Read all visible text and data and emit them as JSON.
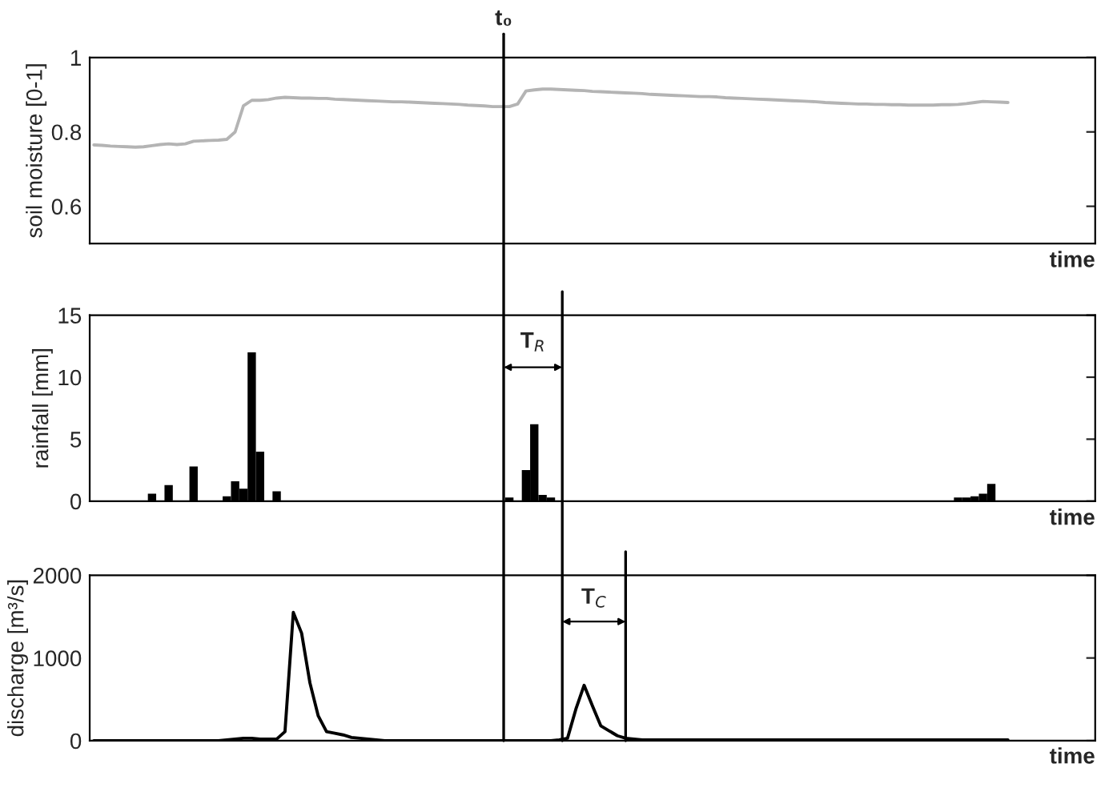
{
  "chart_data": [
    {
      "type": "line",
      "ylabel": "soil moisture [0-1]",
      "xlabel": "time",
      "ylim": [
        0.5,
        1
      ],
      "yticks": [
        0.6,
        0.8,
        1
      ],
      "grid": false,
      "categories": [
        null,
        null,
        null,
        null,
        null,
        null,
        null,
        null,
        null,
        null,
        null,
        null,
        null,
        null,
        null,
        null,
        null,
        null,
        null,
        null,
        null,
        null,
        null,
        null,
        null,
        null,
        null,
        null,
        null,
        null,
        null,
        null,
        null,
        null,
        null,
        null,
        null,
        null,
        null,
        null,
        null,
        null,
        null,
        null,
        null,
        null,
        null,
        null,
        null,
        null,
        null,
        null,
        null,
        null,
        null,
        null,
        null,
        null,
        null,
        null,
        null,
        null,
        null,
        null,
        null,
        null,
        null,
        null,
        null,
        null,
        null,
        null,
        null,
        null,
        null,
        null,
        null,
        null,
        null,
        null,
        null,
        null,
        null,
        null,
        null,
        null,
        null,
        null,
        null,
        null,
        null,
        null,
        null,
        null,
        null,
        null,
        null,
        null,
        null,
        null,
        null,
        null,
        null,
        null,
        null,
        null,
        null,
        null,
        null,
        null,
        null,
        null,
        null,
        null,
        null,
        null,
        null,
        null,
        null,
        null,
        null
      ],
      "series": [
        {
          "color": "#b4b4b4",
          "values": [
            0.765,
            0.764,
            0.762,
            0.761,
            0.76,
            0.759,
            0.76,
            0.763,
            0.766,
            0.768,
            0.766,
            0.768,
            0.775,
            0.776,
            0.777,
            0.778,
            0.78,
            0.8,
            0.87,
            0.885,
            0.885,
            0.887,
            0.891,
            0.893,
            0.892,
            0.891,
            0.891,
            0.89,
            0.89,
            0.888,
            0.887,
            0.886,
            0.885,
            0.884,
            0.883,
            0.882,
            0.881,
            0.881,
            0.88,
            0.879,
            0.878,
            0.877,
            0.876,
            0.875,
            0.874,
            0.872,
            0.871,
            0.87,
            0.868,
            0.868,
            0.868,
            0.875,
            0.91,
            0.913,
            0.915,
            0.915,
            0.914,
            0.913,
            0.912,
            0.911,
            0.909,
            0.908,
            0.907,
            0.906,
            0.905,
            0.904,
            0.903,
            0.901,
            0.9,
            0.899,
            0.898,
            0.897,
            0.896,
            0.895,
            0.895,
            0.894,
            0.892,
            0.891,
            0.89,
            0.889,
            0.888,
            0.887,
            0.886,
            0.885,
            0.884,
            0.883,
            0.882,
            0.881,
            0.879,
            0.878,
            0.877,
            0.876,
            0.875,
            0.875,
            0.874,
            0.874,
            0.873,
            0.873,
            0.872,
            0.872,
            0.872,
            0.872,
            0.873,
            0.873,
            0.874,
            0.876,
            0.879,
            0.882,
            0.881,
            0.88,
            0.879,
            null,
            null,
            null,
            null,
            null,
            null,
            null,
            null,
            null,
            null
          ]
        }
      ],
      "annotations": [
        "t₀"
      ]
    },
    {
      "type": "bar",
      "ylabel": "rainfall [mm]",
      "xlabel": "time",
      "ylim": [
        0,
        15
      ],
      "yticks": [
        0,
        5,
        10,
        15
      ],
      "grid": false,
      "categories": [
        null,
        null,
        null,
        null,
        null,
        null,
        null,
        null,
        null,
        null,
        null,
        null,
        null,
        null,
        null,
        null,
        null,
        null,
        null,
        null,
        null,
        null,
        null,
        null,
        null,
        null,
        null,
        null,
        null,
        null,
        null,
        null,
        null,
        null,
        null,
        null,
        null,
        null,
        null,
        null,
        null,
        null,
        null,
        null,
        null,
        null,
        null,
        null,
        null,
        null,
        null,
        null,
        null,
        null,
        null,
        null,
        null,
        null,
        null,
        null,
        null,
        null,
        null,
        null,
        null,
        null,
        null,
        null,
        null,
        null,
        null,
        null,
        null,
        null,
        null,
        null,
        null,
        null,
        null,
        null,
        null,
        null,
        null,
        null,
        null,
        null,
        null,
        null,
        null,
        null,
        null,
        null,
        null,
        null,
        null,
        null,
        null,
        null,
        null,
        null,
        null,
        null,
        null,
        null,
        null,
        null,
        null,
        null,
        null,
        null,
        null,
        null,
        null,
        null,
        null,
        null,
        null,
        null,
        null,
        null,
        null
      ],
      "series": [
        {
          "color": "#000000",
          "values": [
            0,
            0,
            0,
            0,
            0,
            0,
            0,
            0.6,
            0,
            1.3,
            0,
            0,
            2.8,
            0,
            0,
            0,
            0.4,
            1.6,
            1.0,
            12,
            4,
            0,
            0.8,
            0,
            0,
            0,
            0,
            0,
            0,
            0,
            0,
            0,
            0,
            0,
            0,
            0,
            0,
            0,
            0,
            0,
            0,
            0,
            0,
            0,
            0,
            0,
            0,
            0,
            0,
            0,
            0.3,
            0,
            2.5,
            6.2,
            0.5,
            0.3,
            0,
            0,
            0,
            0,
            0,
            0,
            0,
            0,
            0,
            0,
            0,
            0,
            0,
            0,
            0,
            0,
            0,
            0,
            0,
            0,
            0,
            0,
            0,
            0,
            0,
            0,
            0,
            0,
            0,
            0,
            0,
            0,
            0,
            0,
            0,
            0,
            0,
            0,
            0,
            0,
            0,
            0,
            0,
            0,
            0,
            0,
            0,
            0,
            0.3,
            0.3,
            0.4,
            0.6,
            1.4,
            0,
            0,
            0,
            0,
            0,
            0,
            0,
            0,
            0,
            0,
            0,
            0
          ]
        }
      ],
      "annotations": [
        "T$_{R}$"
      ]
    },
    {
      "type": "line",
      "ylabel": "discharge [m³/s]",
      "xlabel": "time",
      "ylim": [
        0,
        2000
      ],
      "yticks": [
        0,
        1000,
        2000
      ],
      "grid": false,
      "categories": [
        null,
        null,
        null,
        null,
        null,
        null,
        null,
        null,
        null,
        null,
        null,
        null,
        null,
        null,
        null,
        null,
        null,
        null,
        null,
        null,
        null,
        null,
        null,
        null,
        null,
        null,
        null,
        null,
        null,
        null,
        null,
        null,
        null,
        null,
        null,
        null,
        null,
        null,
        null,
        null,
        null,
        null,
        null,
        null,
        null,
        null,
        null,
        null,
        null,
        null,
        null,
        null,
        null,
        null,
        null,
        null,
        null,
        null,
        null,
        null,
        null,
        null,
        null,
        null,
        null,
        null,
        null,
        null,
        null,
        null,
        null,
        null,
        null,
        null,
        null,
        null,
        null,
        null,
        null,
        null,
        null,
        null,
        null,
        null,
        null,
        null,
        null,
        null,
        null,
        null,
        null,
        null,
        null,
        null,
        null,
        null,
        null,
        null,
        null,
        null,
        null,
        null,
        null,
        null,
        null,
        null,
        null,
        null,
        null,
        null,
        null,
        null,
        null,
        null,
        null,
        null,
        null,
        null,
        null,
        null,
        null
      ],
      "series": [
        {
          "color": "#000000",
          "values": [
            0,
            0,
            0,
            0,
            0,
            0,
            0,
            0,
            0,
            0,
            0,
            0,
            0,
            0,
            0,
            0,
            10,
            20,
            30,
            30,
            20,
            20,
            20,
            110,
            1550,
            1300,
            700,
            300,
            110,
            90,
            70,
            40,
            30,
            20,
            10,
            0,
            0,
            0,
            0,
            0,
            0,
            0,
            0,
            0,
            0,
            0,
            0,
            0,
            0,
            0,
            0,
            0,
            0,
            0,
            0,
            0,
            10,
            30,
            380,
            670,
            420,
            180,
            120,
            60,
            30,
            20,
            10,
            10,
            10,
            10,
            10,
            10,
            10,
            10,
            10,
            10,
            10,
            10,
            10,
            10,
            10,
            10,
            10,
            10,
            10,
            10,
            10,
            10,
            10,
            10,
            10,
            10,
            10,
            10,
            10,
            10,
            10,
            10,
            10,
            10,
            10,
            10,
            10,
            10,
            10,
            10,
            10,
            10,
            10,
            10,
            10,
            null,
            null,
            null,
            null,
            null,
            null,
            null,
            null,
            null,
            null
          ]
        }
      ],
      "annotations": [
        "T$_{C}$"
      ]
    }
  ]
}
